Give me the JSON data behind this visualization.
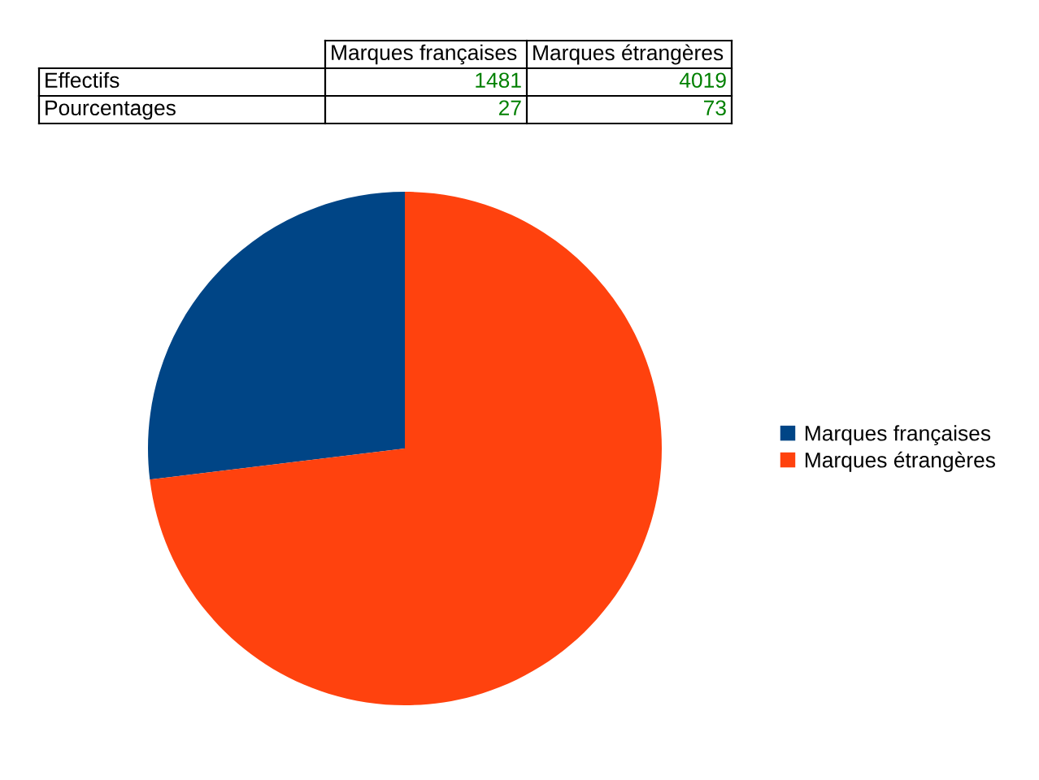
{
  "chart_data": {
    "type": "pie",
    "categories": [
      "Marques françaises",
      "Marques étrangères"
    ],
    "values": [
      1481,
      4019
    ],
    "colors": [
      "#004586",
      "#ff420e"
    ],
    "data_labels": true,
    "annotations": [
      "Effectifs",
      "Pourcentages",
      "27",
      "73"
    ],
    "legend": "right"
  }
}
